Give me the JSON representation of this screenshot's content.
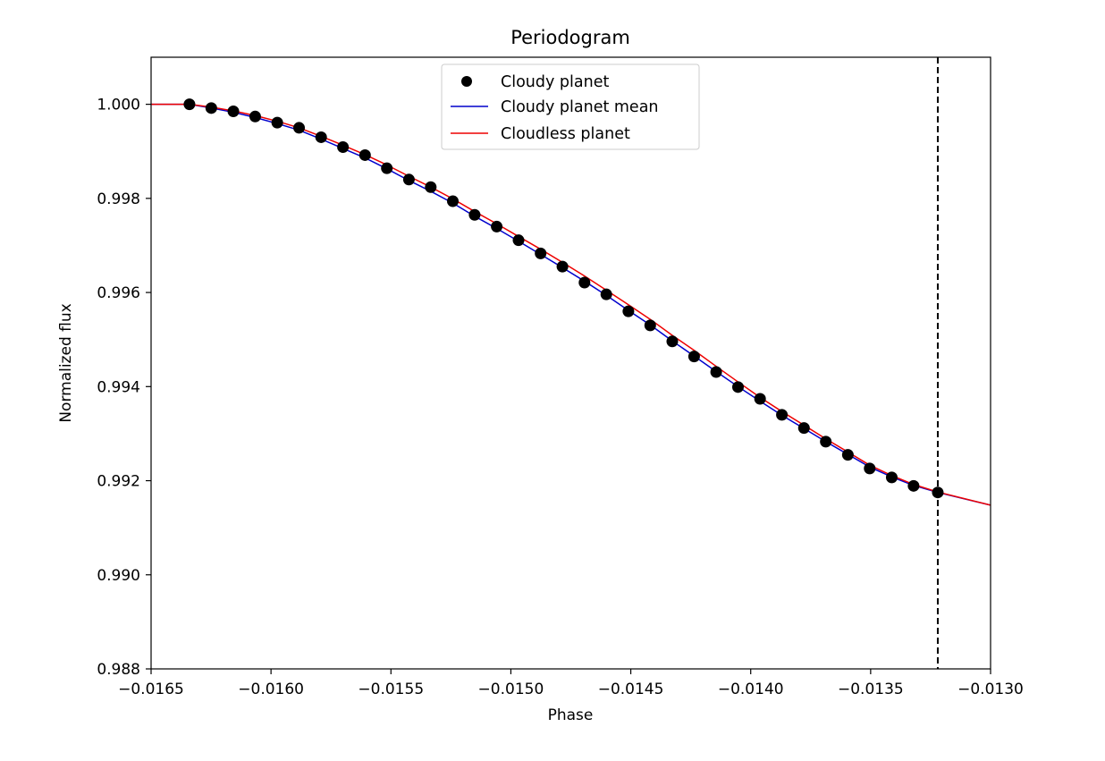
{
  "chart_data": {
    "type": "line",
    "title": "Periodogram",
    "xlabel": "Phase",
    "ylabel": "Normalized flux",
    "xlim": [
      -0.0165,
      -0.013
    ],
    "ylim": [
      0.988,
      1.001
    ],
    "xticks": [
      -0.0165,
      -0.016,
      -0.0155,
      -0.015,
      -0.0145,
      -0.014,
      -0.0135,
      -0.013
    ],
    "xtick_labels": [
      "−0.0165",
      "−0.0160",
      "−0.0155",
      "−0.0150",
      "−0.0145",
      "−0.0140",
      "−0.0135",
      "−0.0130"
    ],
    "yticks": [
      0.988,
      0.99,
      0.992,
      0.994,
      0.996,
      0.998,
      1.0
    ],
    "ytick_labels": [
      "0.988",
      "0.990",
      "0.992",
      "0.994",
      "0.996",
      "0.998",
      "1.000"
    ],
    "grid": false,
    "legend_position": "top-center",
    "vline": {
      "x": -0.01322,
      "style": "dashed",
      "color": "#000000"
    },
    "series": [
      {
        "name": "Cloudy planet",
        "kind": "scatter",
        "color": "#000000",
        "x": [
          -0.01634,
          -0.016249,
          -0.016157,
          -0.016066,
          -0.015974,
          -0.015883,
          -0.015791,
          -0.0157,
          -0.015608,
          -0.015517,
          -0.015425,
          -0.015334,
          -0.015242,
          -0.015151,
          -0.015059,
          -0.014968,
          -0.014876,
          -0.014785,
          -0.014693,
          -0.014602,
          -0.01451,
          -0.014419,
          -0.014327,
          -0.014236,
          -0.014144,
          -0.014053,
          -0.013961,
          -0.01387,
          -0.013778,
          -0.013687,
          -0.013595,
          -0.013504,
          -0.013412,
          -0.013321,
          -0.01322
        ],
        "y": [
          1.0,
          0.99992,
          0.99985,
          0.99974,
          0.99961,
          0.9995,
          0.9993,
          0.99909,
          0.99892,
          0.99864,
          0.9984,
          0.99824,
          0.99794,
          0.99765,
          0.9974,
          0.99711,
          0.99683,
          0.99655,
          0.99621,
          0.99596,
          0.9956,
          0.9953,
          0.99496,
          0.99464,
          0.99431,
          0.99399,
          0.99374,
          0.9934,
          0.99312,
          0.99283,
          0.99255,
          0.99226,
          0.99207,
          0.99189,
          0.99175
        ]
      },
      {
        "name": "Cloudy planet mean",
        "kind": "line",
        "color": "#0000cc",
        "x": [
          -0.0165,
          -0.01634,
          -0.016249,
          -0.016157,
          -0.016066,
          -0.015974,
          -0.015883,
          -0.015791,
          -0.0157,
          -0.015608,
          -0.015517,
          -0.015425,
          -0.015334,
          -0.015242,
          -0.015151,
          -0.015059,
          -0.014968,
          -0.014876,
          -0.014785,
          -0.014693,
          -0.014602,
          -0.01451,
          -0.014419,
          -0.014327,
          -0.014236,
          -0.014144,
          -0.014053,
          -0.013961,
          -0.01387,
          -0.013778,
          -0.013687,
          -0.013595,
          -0.013504,
          -0.013412,
          -0.013321,
          -0.01322,
          -0.013
        ],
        "y": [
          1.0,
          1.0,
          0.99992,
          0.99983,
          0.99972,
          0.99959,
          0.99945,
          0.99926,
          0.99906,
          0.99886,
          0.99863,
          0.99838,
          0.99815,
          0.9979,
          0.99762,
          0.99736,
          0.99709,
          0.99681,
          0.99653,
          0.99624,
          0.99594,
          0.99562,
          0.99531,
          0.99497,
          0.99465,
          0.99432,
          0.994,
          0.99369,
          0.99339,
          0.99311,
          0.99283,
          0.99256,
          0.99229,
          0.99208,
          0.9919,
          0.99175,
          0.99148
        ]
      },
      {
        "name": "Cloudless planet",
        "kind": "line",
        "color": "#ee0000",
        "x": [
          -0.0165,
          -0.01634,
          -0.016249,
          -0.016157,
          -0.016066,
          -0.015974,
          -0.015883,
          -0.015791,
          -0.0157,
          -0.015608,
          -0.015517,
          -0.015425,
          -0.015334,
          -0.015242,
          -0.015151,
          -0.015059,
          -0.014968,
          -0.014876,
          -0.014785,
          -0.014693,
          -0.014602,
          -0.01451,
          -0.014419,
          -0.014327,
          -0.014236,
          -0.014144,
          -0.014053,
          -0.013961,
          -0.01387,
          -0.013778,
          -0.013687,
          -0.013595,
          -0.013504,
          -0.013412,
          -0.013321,
          -0.01322,
          -0.013
        ],
        "y": [
          1.0,
          1.0,
          0.99994,
          0.99986,
          0.99976,
          0.99964,
          0.9995,
          0.99932,
          0.99913,
          0.99893,
          0.99871,
          0.99847,
          0.99824,
          0.99799,
          0.99772,
          0.99746,
          0.99719,
          0.99692,
          0.99664,
          0.99635,
          0.99605,
          0.99574,
          0.99543,
          0.99509,
          0.99477,
          0.99443,
          0.9941,
          0.99377,
          0.99347,
          0.99318,
          0.99289,
          0.99261,
          0.99233,
          0.99211,
          0.99192,
          0.99176,
          0.99148
        ]
      }
    ]
  }
}
